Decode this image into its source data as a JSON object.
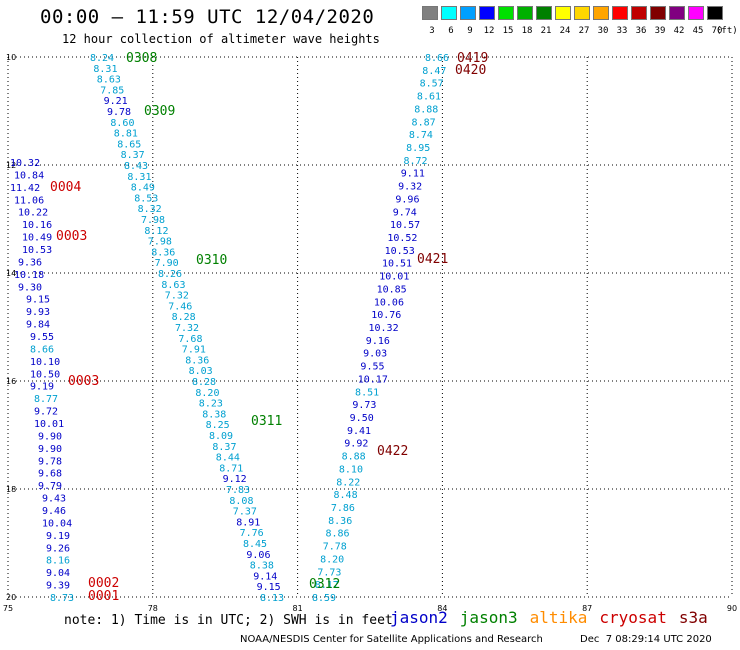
{
  "header": {
    "title": "00:00 — 11:59 UTC 12/04/2020",
    "subtitle": "12 hour collection of altimeter wave heights"
  },
  "legend": {
    "unit_label": "(ft)",
    "bins": [
      {
        "label": "3",
        "color": "#808080"
      },
      {
        "label": "6",
        "color": "#00ffff"
      },
      {
        "label": "9",
        "color": "#00a0ff"
      },
      {
        "label": "12",
        "color": "#0000ff"
      },
      {
        "label": "15",
        "color": "#00e000"
      },
      {
        "label": "18",
        "color": "#00b000"
      },
      {
        "label": "21",
        "color": "#008000"
      },
      {
        "label": "24",
        "color": "#ffff00"
      },
      {
        "label": "27",
        "color": "#ffd700"
      },
      {
        "label": "30",
        "color": "#ffa500"
      },
      {
        "label": "33",
        "color": "#ff0000"
      },
      {
        "label": "36",
        "color": "#c00000"
      },
      {
        "label": "39",
        "color": "#800000"
      },
      {
        "label": "42",
        "color": "#800080"
      },
      {
        "label": "45",
        "color": "#ff00ff"
      },
      {
        "label": "70",
        "color": "#000000"
      }
    ]
  },
  "map": {
    "lon_ticks": [
      "75",
      "78",
      "81",
      "84",
      "87",
      "90"
    ],
    "lat_ticks": [
      "10",
      "12",
      "14",
      "16",
      "18",
      "20"
    ],
    "lon_range": [
      75,
      90
    ],
    "lat_range": [
      10,
      20
    ]
  },
  "colors": {
    "jason2": "#0000c8",
    "jason3": "#008000",
    "altika": "#ff8c00",
    "cryosat": "#cc0000",
    "s3a": "#800000",
    "light": "#00a0d0"
  },
  "tracks": [
    {
      "name": "track-a",
      "lon_start": 77.05,
      "lon_end": 79.5,
      "lat_start": 10.0,
      "lat_end": 13.95,
      "values": [
        "8.24",
        "8.31",
        "8.63",
        "7.85",
        "9.21",
        "9.78",
        "8.60",
        "8.81",
        "8.65",
        "8.37",
        "8.43",
        "8.31",
        "8.49",
        "8.53",
        "8.32",
        "7.98",
        "8.12",
        "7.98",
        "8.36",
        "7.90",
        "8.26",
        "8.63",
        "7.32",
        "7.46",
        "8.28",
        "7.32",
        "7.68",
        "7.91",
        "8.36",
        "8.03",
        "8.28",
        "8.20",
        "8.23",
        "8.38",
        "8.25",
        "8.09",
        "8.37",
        "8.44",
        "8.71",
        "9.12",
        "7.83",
        "8.08",
        "7.37",
        "8.91",
        "7.76",
        "8.45",
        "9.06",
        "8.38",
        "9.14",
        "9.15",
        "8.13"
      ],
      "colors": [
        "light",
        "light",
        "light",
        "light",
        "dark",
        "dark",
        "light",
        "light",
        "light",
        "light",
        "light",
        "light",
        "light",
        "light",
        "light",
        "light",
        "light",
        "light",
        "light",
        "light",
        "light",
        "light",
        "light",
        "light",
        "light",
        "light",
        "light",
        "light",
        "light",
        "light",
        "light",
        "light",
        "light",
        "light",
        "light",
        "light",
        "light",
        "light",
        "light",
        "dark",
        "light",
        "light",
        "light",
        "dark",
        "light",
        "light",
        "dark",
        "light",
        "dark",
        "dark",
        "light"
      ]
    },
    {
      "name": "track-b",
      "values": [
        "10.32",
        "10.84",
        "11.42",
        "11.06",
        "10.22",
        "10.16",
        "10.49",
        "10.53",
        "9.36",
        "10.18",
        "9.30",
        "9.15",
        "9.93",
        "9.84",
        "9.55",
        "8.66",
        "10.10",
        "10.50",
        "9.19",
        "8.77",
        "9.72",
        "10.01",
        "9.90",
        "9.90",
        "9.78",
        "9.68",
        "9.79",
        "9.43",
        "9.46",
        "10.04",
        "9.19",
        "9.26",
        "8.16",
        "9.04",
        "9.39",
        "8.73"
      ],
      "colors": [
        "dark",
        "dark",
        "dark",
        "dark",
        "dark",
        "dark",
        "dark",
        "dark",
        "dark",
        "dark",
        "dark",
        "dark",
        "dark",
        "dark",
        "dark",
        "light",
        "dark",
        "dark",
        "dark",
        "light",
        "dark",
        "dark",
        "dark",
        "dark",
        "dark",
        "dark",
        "dark",
        "dark",
        "dark",
        "dark",
        "dark",
        "dark",
        "light",
        "dark",
        "dark",
        "light"
      ]
    },
    {
      "name": "track-c",
      "values": [
        "8.66",
        "8.47",
        "8.57",
        "8.61",
        "8.88",
        "8.87",
        "8.74",
        "8.95",
        "8.72",
        "9.11",
        "9.32",
        "9.96",
        "9.74",
        "10.57",
        "10.52",
        "10.53",
        "10.51",
        "10.01",
        "10.85",
        "10.06",
        "10.76",
        "10.32",
        "9.16",
        "9.03",
        "9.55",
        "10.17",
        "8.51",
        "9.73",
        "9.50",
        "9.41",
        "9.92",
        "8.88",
        "8.10",
        "8.22",
        "8.48",
        "7.86",
        "8.36",
        "8.86",
        "7.78",
        "8.20",
        "7.73",
        "8.17",
        "8.59"
      ],
      "colors": [
        "light",
        "light",
        "light",
        "light",
        "light",
        "light",
        "light",
        "light",
        "light",
        "dark",
        "dark",
        "dark",
        "dark",
        "dark",
        "dark",
        "dark",
        "dark",
        "dark",
        "dark",
        "dark",
        "dark",
        "dark",
        "dark",
        "dark",
        "dark",
        "dark",
        "light",
        "dark",
        "dark",
        "dark",
        "dark",
        "light",
        "light",
        "light",
        "light",
        "light",
        "light",
        "light",
        "light",
        "light",
        "light",
        "light",
        "light"
      ]
    }
  ],
  "pass_labels": [
    {
      "text": "0308",
      "color": "jason3"
    },
    {
      "text": "0309",
      "color": "jason3"
    },
    {
      "text": "0310",
      "color": "jason3"
    },
    {
      "text": "0311",
      "color": "jason3"
    },
    {
      "text": "0312",
      "color": "jason3"
    },
    {
      "text": "0004",
      "color": "cryosat"
    },
    {
      "text": "0003",
      "color": "cryosat"
    },
    {
      "text": "0003",
      "color": "cryosat"
    },
    {
      "text": "0002",
      "color": "cryosat"
    },
    {
      "text": "0001",
      "color": "cryosat"
    },
    {
      "text": "0419",
      "color": "s3a"
    },
    {
      "text": "0420",
      "color": "s3a"
    },
    {
      "text": "0421",
      "color": "s3a"
    },
    {
      "text": "0422",
      "color": "s3a"
    }
  ],
  "footer": {
    "note": "note: 1) Time is in UTC; 2) SWH is in feet",
    "missions": [
      {
        "label": "jason2",
        "color": "jason2"
      },
      {
        "label": "jason3",
        "color": "jason3"
      },
      {
        "label": "altika",
        "color": "altika"
      },
      {
        "label": "cryosat",
        "color": "cryosat"
      },
      {
        "label": "s3a",
        "color": "s3a"
      }
    ],
    "credit": "NOAA/NESDIS Center for Satellite Applications and Research",
    "timestamp": "Dec  7 08:29:14 UTC 2020"
  }
}
